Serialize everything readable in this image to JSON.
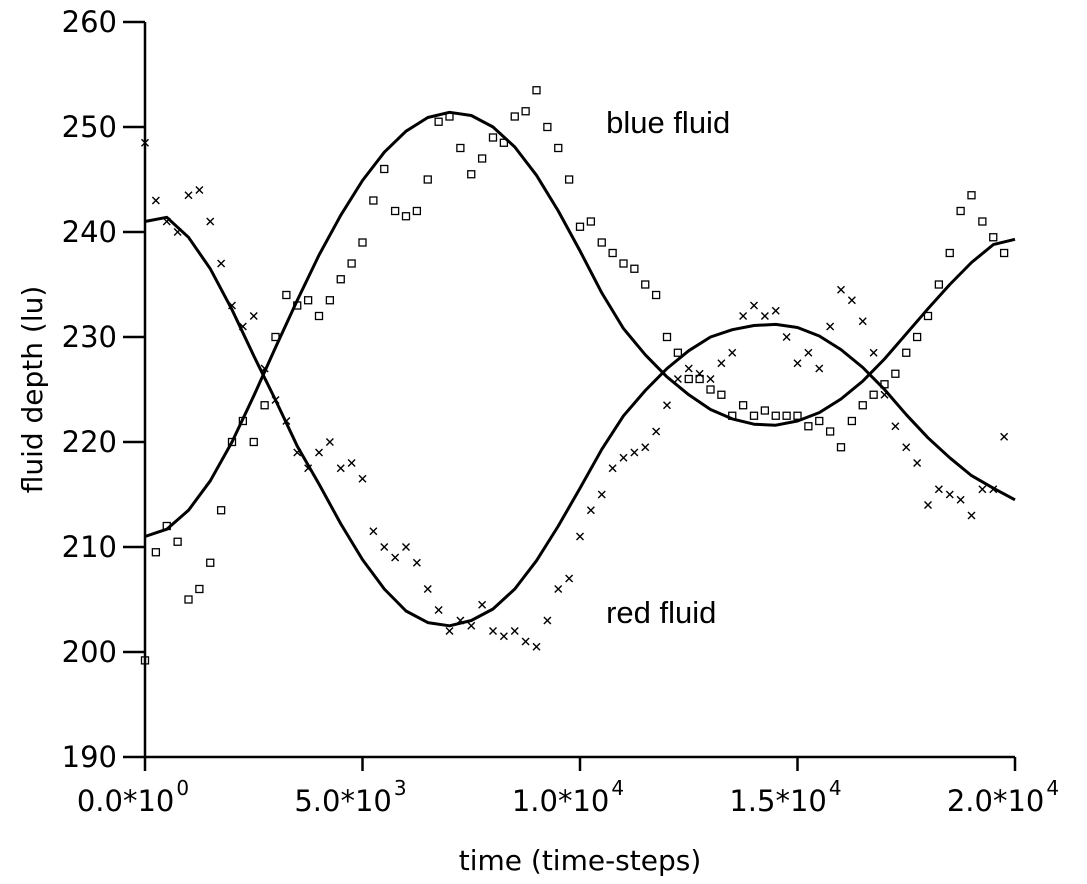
{
  "chart_data": {
    "type": "scatter",
    "xlabel": "time (time-steps)",
    "ylabel": "fluid depth (lu)",
    "xlim": [
      0,
      20000
    ],
    "ylim": [
      190,
      260
    ],
    "grid": false,
    "legend": "none",
    "x_ticks": [
      {
        "value": 0,
        "mantissa": "0.0*10",
        "exp": "0"
      },
      {
        "value": 5000,
        "mantissa": "5.0*10",
        "exp": "3"
      },
      {
        "value": 10000,
        "mantissa": "1.0*10",
        "exp": "4"
      },
      {
        "value": 15000,
        "mantissa": "1.5*10",
        "exp": "4"
      },
      {
        "value": 20000,
        "mantissa": "2.0*10",
        "exp": "4"
      }
    ],
    "y_ticks": [
      {
        "value": 190,
        "label": "190"
      },
      {
        "value": 200,
        "label": "200"
      },
      {
        "value": 210,
        "label": "210"
      },
      {
        "value": 220,
        "label": "220"
      },
      {
        "value": 230,
        "label": "230"
      },
      {
        "value": 240,
        "label": "240"
      },
      {
        "value": 250,
        "label": "250"
      },
      {
        "value": 260,
        "label": "260"
      }
    ],
    "annotations": [
      {
        "text": "blue fluid",
        "x": 10600,
        "y": 250.5
      },
      {
        "text": "red fluid",
        "x": 10600,
        "y": 203.8
      }
    ],
    "series": [
      {
        "marker": "square",
        "x": [
          0,
          250,
          500,
          750,
          1000,
          1250,
          1500,
          1750,
          2000,
          2250,
          2500,
          2750,
          3000,
          3250,
          3500,
          3750,
          4000,
          4250,
          4500,
          4750,
          5000,
          5250,
          5500,
          5750,
          6000,
          6250,
          6500,
          6750,
          7000,
          7250,
          7500,
          7750,
          8000,
          8250,
          8500,
          8750,
          9000,
          9250,
          9500,
          9750,
          10000,
          10250,
          10500,
          10750,
          11000,
          11250,
          11500,
          11750,
          12000,
          12250,
          12500,
          12750,
          13000,
          13250,
          13500,
          13750,
          14000,
          14250,
          14500,
          14750,
          15000,
          15250,
          15500,
          15750,
          16000,
          16250,
          16500,
          16750,
          17000,
          17250,
          17500,
          17750,
          18000,
          18250,
          18500,
          18750,
          19000,
          19250,
          19500,
          19750
        ],
        "y": [
          199.2,
          209.5,
          212,
          210.5,
          205,
          206,
          208.5,
          213.5,
          220,
          222,
          220,
          223.5,
          230,
          234,
          233,
          233.5,
          232,
          233.5,
          235.5,
          237,
          239,
          243,
          246,
          242,
          241.5,
          242,
          245,
          250.5,
          251,
          248,
          245.5,
          247,
          249,
          248.5,
          251,
          251.5,
          253.5,
          250,
          248,
          245,
          240.5,
          241,
          239,
          238,
          237,
          236.5,
          235,
          234,
          230,
          228.5,
          226,
          226,
          225,
          224.5,
          222.5,
          223.5,
          222.5,
          223,
          222.5,
          222.5,
          222.5,
          221.5,
          222,
          221,
          219.5,
          222,
          223.5,
          224.5,
          225.5,
          226.5,
          228.5,
          230,
          232,
          235,
          238,
          242,
          243.5,
          241,
          239.5,
          238
        ]
      },
      {
        "marker": "x",
        "x": [
          0,
          250,
          500,
          750,
          1000,
          1250,
          1500,
          1750,
          2000,
          2250,
          2500,
          2750,
          3000,
          3250,
          3500,
          3750,
          4000,
          4250,
          4500,
          4750,
          5000,
          5250,
          5500,
          5750,
          6000,
          6250,
          6500,
          6750,
          7000,
          7250,
          7500,
          7750,
          8000,
          8250,
          8500,
          8750,
          9000,
          9250,
          9500,
          9750,
          10000,
          10250,
          10500,
          10750,
          11000,
          11250,
          11500,
          11750,
          12000,
          12250,
          12500,
          12750,
          13000,
          13250,
          13500,
          13750,
          14000,
          14250,
          14500,
          14750,
          15000,
          15250,
          15500,
          15750,
          16000,
          16250,
          16500,
          16750,
          17000,
          17250,
          17500,
          17750,
          18000,
          18250,
          18500,
          18750,
          19000,
          19250,
          19500,
          19750
        ],
        "y": [
          248.5,
          243,
          241,
          240,
          243.5,
          244,
          241,
          237,
          233,
          231,
          232,
          227,
          224,
          222,
          219,
          217.5,
          219,
          220,
          217.5,
          218,
          216.5,
          211.5,
          210,
          209,
          210,
          208.5,
          206,
          204,
          202,
          203,
          202.5,
          204.5,
          202,
          201.5,
          202,
          201,
          200.5,
          203,
          206,
          207,
          211,
          213.5,
          215,
          217.5,
          218.5,
          219,
          219.5,
          221,
          223.5,
          226,
          227,
          226.5,
          226,
          227.5,
          228.5,
          232,
          233,
          232,
          232.5,
          230,
          227.5,
          228.5,
          227,
          231,
          234.5,
          233.5,
          231.5,
          228.5,
          224.5,
          221.5,
          219.5,
          218,
          214,
          215.5,
          215,
          214.5,
          213,
          215.5,
          215.5,
          220.5
        ]
      },
      {
        "type": "line",
        "x": [
          0,
          500,
          1000,
          1500,
          2000,
          2500,
          3000,
          3500,
          4000,
          4500,
          5000,
          5500,
          6000,
          6500,
          7000,
          7500,
          8000,
          8500,
          9000,
          9500,
          10000,
          10500,
          11000,
          11500,
          12000,
          12500,
          13000,
          13500,
          14000,
          14500,
          15000,
          15500,
          16000,
          16500,
          17000,
          17500,
          18000,
          18500,
          19000,
          19500,
          20000
        ],
        "y": [
          211,
          211.7,
          213.5,
          216.3,
          220,
          224.4,
          229,
          233.5,
          237.8,
          241.6,
          244.9,
          247.6,
          249.6,
          250.9,
          251.4,
          251.1,
          250,
          248.1,
          245.4,
          242,
          238.2,
          234.2,
          230.8,
          228.3,
          226.2,
          224.5,
          223.1,
          222.2,
          221.7,
          221.6,
          222,
          222.8,
          224.1,
          225.8,
          227.9,
          230.3,
          232.7,
          235,
          237.1,
          238.8,
          239.3
        ]
      },
      {
        "type": "line",
        "x": [
          0,
          500,
          1000,
          1500,
          2000,
          2500,
          3000,
          3500,
          4000,
          4500,
          5000,
          5500,
          6000,
          6500,
          7000,
          7500,
          8000,
          8500,
          9000,
          9500,
          10000,
          10500,
          11000,
          11500,
          12000,
          12500,
          13000,
          13500,
          14000,
          14500,
          15000,
          15500,
          16000,
          16500,
          17000,
          17500,
          18000,
          18500,
          19000,
          19500,
          20000
        ],
        "y": [
          241,
          241.4,
          239.5,
          236.5,
          232.6,
          228.2,
          224,
          219.6,
          216,
          212.2,
          208.8,
          206,
          203.9,
          202.8,
          202.5,
          203,
          204.1,
          206,
          208.7,
          212,
          215.6,
          219.3,
          222.5,
          224.9,
          227,
          228.7,
          230,
          230.7,
          231.1,
          231.2,
          230.9,
          230.1,
          228.8,
          227.1,
          225,
          222.6,
          220.4,
          218.5,
          216.8,
          215.6,
          214.5
        ]
      }
    ]
  }
}
